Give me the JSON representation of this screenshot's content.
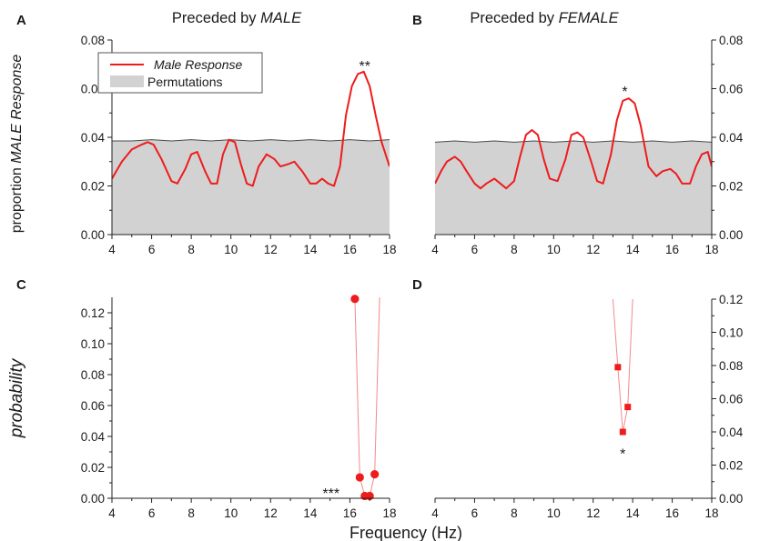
{
  "figure": {
    "ylabel_top": {
      "prefix": "proportion ",
      "italic": "MALE Response"
    },
    "ylabel_bottom": "probability",
    "xlabel": "Frequency (Hz)"
  },
  "colors": {
    "response": "#ee1c1c",
    "permutation_fill": "#d2d2d2",
    "permutation_edge": "#4a4a4a",
    "axis": "#222222"
  },
  "chart_data": [
    {
      "panel": "A",
      "type": "area",
      "title": {
        "prefix": "Preceded by ",
        "italic": "MALE"
      },
      "xlabel": "",
      "ylabel": "proportion MALE Response",
      "xlim": [
        4,
        18
      ],
      "ylim": [
        0,
        0.08
      ],
      "xticks": [
        4,
        6,
        8,
        10,
        12,
        14,
        16,
        18
      ],
      "yticks": [
        "0.00",
        "0.02",
        "0.04",
        "0.06",
        "0.08"
      ],
      "y_axis_side": "left",
      "legend": {
        "placement": "top-left",
        "entries": [
          "Male Response",
          "Permutations"
        ]
      },
      "series": [
        {
          "name": "Male Response",
          "kind": "line",
          "x": [
            4,
            4.5,
            5,
            5.5,
            5.8,
            6.1,
            6.5,
            7,
            7.3,
            7.7,
            8,
            8.3,
            8.7,
            9,
            9.3,
            9.6,
            9.9,
            10.2,
            10.5,
            10.8,
            11.1,
            11.4,
            11.8,
            12.2,
            12.5,
            12.9,
            13.2,
            13.6,
            14,
            14.3,
            14.6,
            14.9,
            15.2,
            15.5,
            15.8,
            16.1,
            16.4,
            16.7,
            17,
            17.3,
            17.6,
            18
          ],
          "y": [
            0.023,
            0.03,
            0.035,
            0.037,
            0.038,
            0.037,
            0.031,
            0.022,
            0.021,
            0.027,
            0.033,
            0.034,
            0.026,
            0.021,
            0.021,
            0.033,
            0.039,
            0.038,
            0.029,
            0.021,
            0.02,
            0.028,
            0.033,
            0.031,
            0.028,
            0.029,
            0.03,
            0.026,
            0.021,
            0.021,
            0.023,
            0.021,
            0.02,
            0.028,
            0.049,
            0.061,
            0.066,
            0.067,
            0.061,
            0.049,
            0.038,
            0.028
          ]
        },
        {
          "name": "Permutations",
          "kind": "area",
          "x": [
            4,
            5,
            6,
            7,
            8,
            9,
            10,
            11,
            12,
            13,
            14,
            15,
            16,
            17,
            18
          ],
          "y": [
            0.0385,
            0.0385,
            0.039,
            0.0385,
            0.039,
            0.0385,
            0.039,
            0.0385,
            0.039,
            0.0385,
            0.039,
            0.0385,
            0.039,
            0.0385,
            0.039
          ]
        }
      ],
      "annotations": [
        {
          "text": "**",
          "x": 16.75,
          "y": 0.0695
        }
      ]
    },
    {
      "panel": "B",
      "type": "area",
      "title": {
        "prefix": "Preceded by ",
        "italic": "FEMALE"
      },
      "xlabel": "",
      "ylabel": "",
      "xlim": [
        4,
        18
      ],
      "ylim": [
        0,
        0.08
      ],
      "xticks": [
        4,
        6,
        8,
        10,
        12,
        14,
        16,
        18
      ],
      "yticks": [
        "0.00",
        "0.02",
        "0.04",
        "0.06",
        "0.08"
      ],
      "y_axis_side": "right",
      "series": [
        {
          "name": "Male Response",
          "kind": "line",
          "x": [
            4,
            4.3,
            4.6,
            5,
            5.3,
            5.6,
            6,
            6.3,
            6.6,
            7,
            7.3,
            7.6,
            8,
            8.3,
            8.6,
            8.9,
            9.2,
            9.5,
            9.8,
            10.2,
            10.6,
            10.9,
            11.2,
            11.5,
            11.9,
            12.2,
            12.5,
            12.9,
            13.2,
            13.5,
            13.8,
            14.1,
            14.4,
            14.8,
            15.2,
            15.5,
            15.9,
            16.2,
            16.5,
            16.9,
            17.2,
            17.5,
            17.8,
            18
          ],
          "y": [
            0.021,
            0.026,
            0.03,
            0.032,
            0.03,
            0.026,
            0.021,
            0.019,
            0.021,
            0.023,
            0.021,
            0.019,
            0.022,
            0.032,
            0.041,
            0.043,
            0.041,
            0.031,
            0.023,
            0.022,
            0.031,
            0.041,
            0.042,
            0.04,
            0.03,
            0.022,
            0.021,
            0.033,
            0.047,
            0.055,
            0.056,
            0.054,
            0.045,
            0.028,
            0.024,
            0.026,
            0.027,
            0.025,
            0.021,
            0.021,
            0.028,
            0.033,
            0.034,
            0.028
          ]
        },
        {
          "name": "Permutations",
          "kind": "area",
          "x": [
            4,
            5,
            6,
            7,
            8,
            9,
            10,
            11,
            12,
            13,
            14,
            15,
            16,
            17,
            18
          ],
          "y": [
            0.038,
            0.0385,
            0.038,
            0.0385,
            0.038,
            0.0385,
            0.038,
            0.0385,
            0.038,
            0.0385,
            0.038,
            0.0385,
            0.038,
            0.0385,
            0.038
          ]
        }
      ],
      "annotations": [
        {
          "text": "*",
          "x": 13.6,
          "y": 0.059
        }
      ]
    },
    {
      "panel": "C",
      "type": "scatter",
      "title": "",
      "xlabel": "Frequency (Hz)",
      "ylabel": "probability",
      "xlim": [
        4,
        18
      ],
      "ylim": [
        0,
        0.13
      ],
      "xticks": [
        4,
        6,
        8,
        10,
        12,
        14,
        16,
        18
      ],
      "yticks": [
        "0.00",
        "0.02",
        "0.04",
        "0.06",
        "0.08",
        "0.10",
        "0.12"
      ],
      "y_axis_side": "left",
      "marker": "circle",
      "series": [
        {
          "kind": "markers",
          "x": [
            16.25,
            16.5,
            16.75,
            17.0,
            17.25
          ],
          "y": [
            0.129,
            0.0135,
            0.0015,
            0.0015,
            0.0155
          ]
        },
        {
          "kind": "connector",
          "x": [
            16.25,
            16.5,
            16.75,
            17.0,
            17.25,
            17.5
          ],
          "y": [
            0.13,
            0.0135,
            0.0015,
            0.0015,
            0.0155,
            0.13
          ]
        }
      ],
      "annotations": [
        {
          "text": "***",
          "x": 15.05,
          "y": 0.0035
        }
      ]
    },
    {
      "panel": "D",
      "type": "scatter",
      "title": "",
      "xlabel": "",
      "ylabel": "",
      "xlim": [
        4,
        18
      ],
      "ylim": [
        0,
        0.12
      ],
      "xticks": [
        4,
        6,
        8,
        10,
        12,
        14,
        16,
        18
      ],
      "yticks": [
        "0.00",
        "0.02",
        "0.04",
        "0.06",
        "0.08",
        "0.10",
        "0.12"
      ],
      "y_axis_side": "right",
      "marker": "square",
      "series": [
        {
          "kind": "markers",
          "x": [
            13.25,
            13.5,
            13.75
          ],
          "y": [
            0.079,
            0.04,
            0.055
          ]
        },
        {
          "kind": "connector",
          "x": [
            13.0,
            13.25,
            13.5,
            13.75,
            14.0
          ],
          "y": [
            0.12,
            0.079,
            0.04,
            0.055,
            0.12
          ]
        }
      ],
      "annotations": [
        {
          "text": "*",
          "x": 13.5,
          "y": 0.027
        }
      ]
    }
  ]
}
